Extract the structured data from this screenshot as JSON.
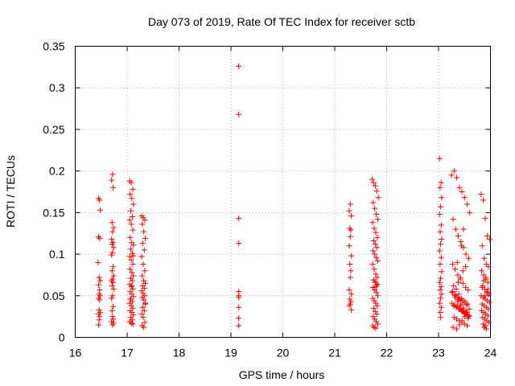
{
  "chart_data": {
    "type": "scatter",
    "title": "Day 073 of 2019, Rate Of TEC Index for receiver sctb",
    "xlabel": "GPS time / hours",
    "ylabel": "ROTI / TECUs",
    "xlim": [
      16,
      24
    ],
    "ylim": [
      0,
      0.35
    ],
    "grid": true,
    "marker": "+",
    "color": "#ff0000",
    "x_ticks": [
      "16",
      "17",
      "18",
      "19",
      "20",
      "21",
      "22",
      "23",
      "24"
    ],
    "y_ticks": [
      "0",
      "0.05",
      "0.1",
      "0.15",
      "0.2",
      "0.25",
      "0.3",
      "0.35"
    ],
    "series": [
      {
        "name": "ROTI",
        "x": [
          16.45,
          16.47,
          16.48,
          16.45,
          16.47,
          16.44,
          16.46,
          16.48,
          16.45,
          16.47,
          16.46,
          16.48,
          16.45,
          16.47,
          16.46,
          16.48,
          16.45,
          16.47,
          16.46,
          16.45,
          16.72,
          16.7,
          16.73,
          16.71,
          16.74,
          16.72,
          16.7,
          16.73,
          16.71,
          16.74,
          16.72,
          16.7,
          16.73,
          16.71,
          16.74,
          16.72,
          16.7,
          16.73,
          16.71,
          16.74,
          16.72,
          16.7,
          16.73,
          16.71,
          16.72,
          16.73,
          16.7,
          16.74,
          16.72,
          17.05,
          17.08,
          17.11,
          17.06,
          17.09,
          17.12,
          17.07,
          17.1,
          17.05,
          17.08,
          17.11,
          17.06,
          17.09,
          17.12,
          17.07,
          17.1,
          17.05,
          17.08,
          17.11,
          17.06,
          17.09,
          17.12,
          17.07,
          17.1,
          17.05,
          17.08,
          17.11,
          17.06,
          17.09,
          17.12,
          17.07,
          17.1,
          17.05,
          17.08,
          17.11,
          17.06,
          17.09,
          17.12,
          17.07,
          17.1,
          17.05,
          17.08,
          17.11,
          17.06,
          17.09,
          17.12,
          17.28,
          17.31,
          17.34,
          17.29,
          17.32,
          17.35,
          17.3,
          17.33,
          17.28,
          17.31,
          17.34,
          17.29,
          17.32,
          17.35,
          17.3,
          17.33,
          17.28,
          17.31,
          17.34,
          17.29,
          17.32,
          17.35,
          17.3,
          17.33,
          17.28,
          17.31,
          17.34,
          17.29,
          17.32,
          17.35,
          19.15,
          19.15,
          19.15,
          19.15,
          19.15,
          19.15,
          19.15,
          19.15,
          19.15,
          19.15,
          21.3,
          21.28,
          21.32,
          21.29,
          21.31,
          21.3,
          21.28,
          21.32,
          21.29,
          21.31,
          21.3,
          21.28,
          21.32,
          21.29,
          21.31,
          21.3,
          21.28,
          21.32,
          21.72,
          21.75,
          21.78,
          21.81,
          21.84,
          21.74,
          21.77,
          21.8,
          21.83,
          21.73,
          21.76,
          21.79,
          21.82,
          21.75,
          21.78,
          21.81,
          21.74,
          21.77,
          21.8,
          21.83,
          21.73,
          21.76,
          21.79,
          21.82,
          21.75,
          21.78,
          21.81,
          21.74,
          21.77,
          21.8,
          21.83,
          21.73,
          21.76,
          21.79,
          21.82,
          21.75,
          21.78,
          21.81,
          21.74,
          21.77,
          21.8,
          21.83,
          21.73,
          21.76,
          21.79,
          21.82,
          21.78,
          21.8,
          23.02,
          23.05,
          23.03,
          23.06,
          23.04,
          23.02,
          23.05,
          23.03,
          23.06,
          23.04,
          23.02,
          23.05,
          23.03,
          23.06,
          23.04,
          23.02,
          23.05,
          23.03,
          23.06,
          23.04,
          23.02,
          23.05,
          23.03,
          23.04,
          23.25,
          23.3,
          23.35,
          23.4,
          23.45,
          23.5,
          23.55,
          23.6,
          23.28,
          23.33,
          23.38,
          23.43,
          23.48,
          23.53,
          23.58,
          23.27,
          23.32,
          23.37,
          23.42,
          23.47,
          23.52,
          23.57,
          23.26,
          23.31,
          23.36,
          23.41,
          23.46,
          23.51,
          23.56,
          23.29,
          23.34,
          23.39,
          23.44,
          23.49,
          23.54,
          23.59,
          23.3,
          23.35,
          23.4,
          23.45,
          23.5,
          23.55,
          23.28,
          23.33,
          23.38,
          23.43,
          23.48,
          23.53,
          23.58,
          23.27,
          23.32,
          23.37,
          23.42,
          23.47,
          23.52,
          23.57,
          23.26,
          23.31,
          23.36,
          23.41,
          23.46,
          23.51,
          23.56,
          23.29,
          23.34,
          23.39,
          23.44,
          23.49,
          23.54,
          23.59,
          23.35,
          23.4,
          23.45,
          23.5,
          23.55,
          23.38,
          23.42,
          23.47,
          23.52,
          23.36,
          23.44,
          23.48,
          23.82,
          23.86,
          23.9,
          23.94,
          23.98,
          23.84,
          23.88,
          23.92,
          23.96,
          23.83,
          23.87,
          23.91,
          23.95,
          23.85,
          23.89,
          23.93,
          23.97,
          23.82,
          23.86,
          23.9,
          23.94,
          23.98,
          23.84,
          23.88,
          23.92,
          23.96,
          23.83,
          23.87,
          23.91,
          23.95,
          23.85,
          23.89,
          23.93,
          23.97,
          23.86,
          23.9,
          23.88,
          23.92,
          23.84,
          23.94,
          23.87,
          23.91,
          23.95,
          23.89
        ],
        "y": [
          0.167,
          0.165,
          0.153,
          0.121,
          0.119,
          0.09,
          0.072,
          0.068,
          0.063,
          0.057,
          0.052,
          0.05,
          0.047,
          0.045,
          0.033,
          0.03,
          0.028,
          0.025,
          0.021,
          0.015,
          0.196,
          0.189,
          0.18,
          0.138,
          0.132,
          0.127,
          0.118,
          0.114,
          0.112,
          0.108,
          0.102,
          0.099,
          0.085,
          0.08,
          0.074,
          0.07,
          0.068,
          0.066,
          0.062,
          0.058,
          0.05,
          0.047,
          0.037,
          0.032,
          0.025,
          0.022,
          0.019,
          0.017,
          0.015,
          0.188,
          0.186,
          0.178,
          0.172,
          0.167,
          0.16,
          0.152,
          0.145,
          0.141,
          0.136,
          0.129,
          0.12,
          0.114,
          0.111,
          0.106,
          0.101,
          0.097,
          0.093,
          0.088,
          0.082,
          0.078,
          0.074,
          0.071,
          0.068,
          0.064,
          0.061,
          0.058,
          0.055,
          0.052,
          0.049,
          0.046,
          0.043,
          0.041,
          0.038,
          0.035,
          0.032,
          0.03,
          0.027,
          0.024,
          0.021,
          0.019,
          0.017,
          0.016,
          0.046,
          0.062,
          0.098,
          0.146,
          0.144,
          0.141,
          0.136,
          0.127,
          0.119,
          0.113,
          0.105,
          0.097,
          0.088,
          0.08,
          0.074,
          0.068,
          0.065,
          0.062,
          0.059,
          0.056,
          0.053,
          0.05,
          0.048,
          0.045,
          0.041,
          0.036,
          0.032,
          0.028,
          0.024,
          0.018,
          0.014,
          0.012,
          0.04,
          0.326,
          0.268,
          0.143,
          0.113,
          0.055,
          0.05,
          0.048,
          0.036,
          0.023,
          0.014,
          0.16,
          0.152,
          0.146,
          0.131,
          0.129,
          0.121,
          0.11,
          0.098,
          0.088,
          0.08,
          0.072,
          0.057,
          0.052,
          0.046,
          0.043,
          0.04,
          0.038,
          0.033,
          0.19,
          0.186,
          0.182,
          0.176,
          0.168,
          0.162,
          0.155,
          0.148,
          0.142,
          0.138,
          0.131,
          0.126,
          0.12,
          0.116,
          0.112,
          0.108,
          0.104,
          0.1,
          0.096,
          0.092,
          0.088,
          0.082,
          0.076,
          0.072,
          0.069,
          0.066,
          0.063,
          0.06,
          0.057,
          0.054,
          0.05,
          0.047,
          0.044,
          0.041,
          0.038,
          0.035,
          0.031,
          0.028,
          0.025,
          0.022,
          0.019,
          0.016,
          0.014,
          0.012,
          0.011,
          0.064,
          0.067,
          0.061,
          0.215,
          0.186,
          0.18,
          0.168,
          0.157,
          0.148,
          0.135,
          0.127,
          0.118,
          0.112,
          0.104,
          0.096,
          0.088,
          0.079,
          0.071,
          0.066,
          0.061,
          0.057,
          0.052,
          0.047,
          0.041,
          0.036,
          0.03,
          0.024,
          0.195,
          0.2,
          0.192,
          0.18,
          0.175,
          0.168,
          0.16,
          0.15,
          0.142,
          0.13,
          0.122,
          0.115,
          0.108,
          0.1,
          0.095,
          0.088,
          0.082,
          0.075,
          0.07,
          0.065,
          0.06,
          0.057,
          0.054,
          0.051,
          0.048,
          0.046,
          0.044,
          0.042,
          0.04,
          0.038,
          0.036,
          0.034,
          0.032,
          0.03,
          0.028,
          0.026,
          0.024,
          0.022,
          0.02,
          0.018,
          0.016,
          0.014,
          0.012,
          0.05,
          0.045,
          0.04,
          0.035,
          0.03,
          0.025,
          0.055,
          0.048,
          0.043,
          0.038,
          0.033,
          0.028,
          0.023,
          0.041,
          0.039,
          0.037,
          0.035,
          0.031,
          0.029,
          0.027,
          0.062,
          0.058,
          0.052,
          0.047,
          0.044,
          0.039,
          0.034,
          0.01,
          0.015,
          0.02,
          0.025,
          0.03,
          0.066,
          0.072,
          0.08,
          0.085,
          0.09,
          0.11,
          0.13,
          0.172,
          0.165,
          0.143,
          0.122,
          0.118,
          0.11,
          0.095,
          0.088,
          0.085,
          0.08,
          0.075,
          0.07,
          0.066,
          0.062,
          0.058,
          0.055,
          0.052,
          0.05,
          0.048,
          0.046,
          0.044,
          0.042,
          0.04,
          0.038,
          0.036,
          0.034,
          0.032,
          0.03,
          0.028,
          0.026,
          0.024,
          0.022,
          0.02,
          0.018,
          0.016,
          0.014,
          0.012,
          0.01,
          0.06,
          0.054,
          0.068,
          0.072,
          0.058,
          0.05
        ]
      }
    ]
  }
}
